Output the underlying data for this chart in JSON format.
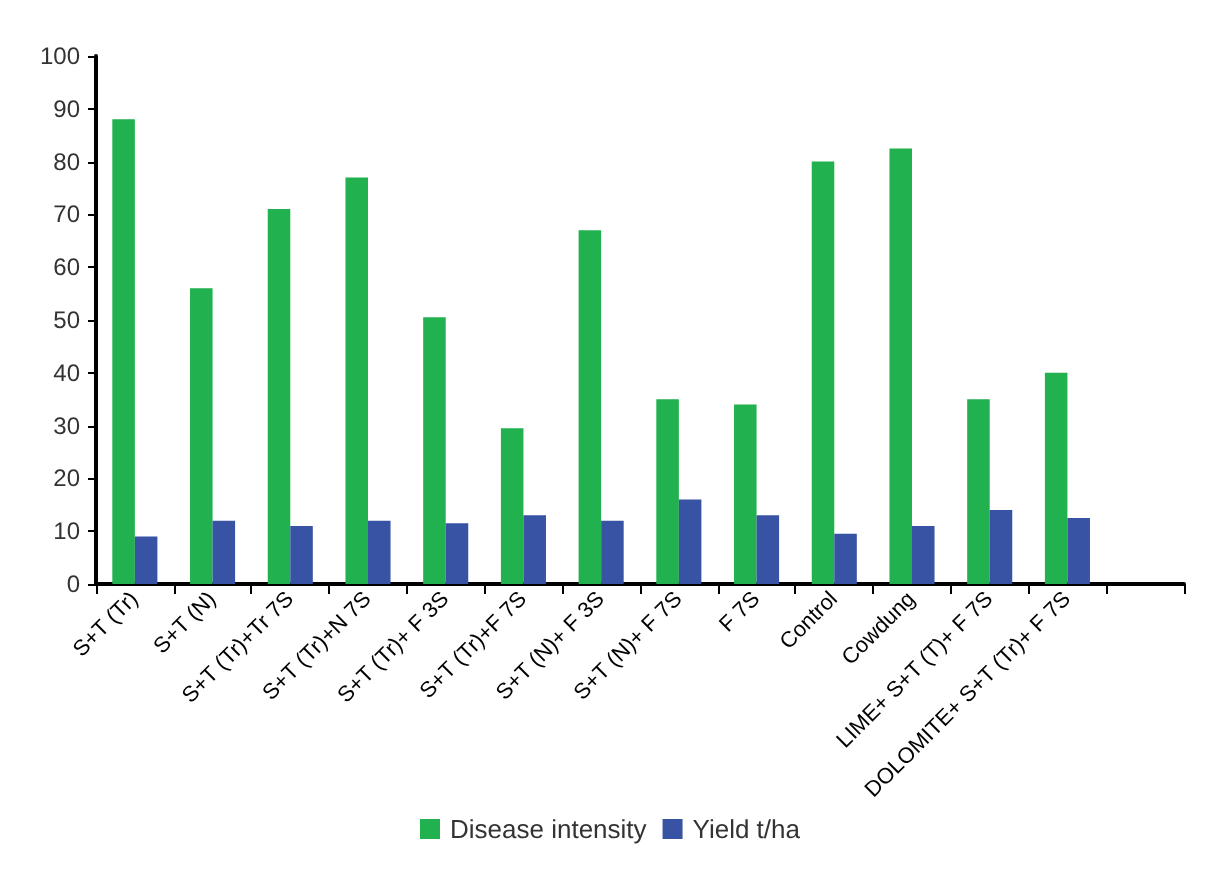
{
  "chart_data": {
    "type": "bar",
    "categories": [
      "S+T (Tr)",
      "S+T (N)",
      "S+T (Tr)+Tr 7S",
      "S+T (Tr)+N 7S",
      "S+T (Tr)+ F 3S",
      "S+T (Tr)+F 7S",
      "S+T (N)+ F 3S",
      "S+T (N)+ F 7S",
      "F 7S",
      "Control",
      "Cowdung",
      "LIME+ S+T (T)+ F 7S",
      "DOLOMITE+ S+T (Tr)+ F 7S",
      null
    ],
    "series": [
      {
        "name": "Disease intensity",
        "color": "#21b14f",
        "values": [
          88,
          56,
          71,
          77,
          50.5,
          29.5,
          67,
          35,
          34,
          80,
          82.5,
          35,
          40,
          null
        ]
      },
      {
        "name": "Yield t/ha",
        "color": "#3953a4",
        "values": [
          9,
          12,
          11,
          12,
          11.5,
          13,
          12,
          16,
          13,
          9.5,
          11,
          14,
          12.5,
          null
        ]
      }
    ],
    "ylim": [
      0,
      100
    ],
    "yticks": [
      0,
      10,
      20,
      30,
      40,
      50,
      60,
      70,
      80,
      90,
      100
    ],
    "grid": false,
    "legend": "bottom"
  }
}
